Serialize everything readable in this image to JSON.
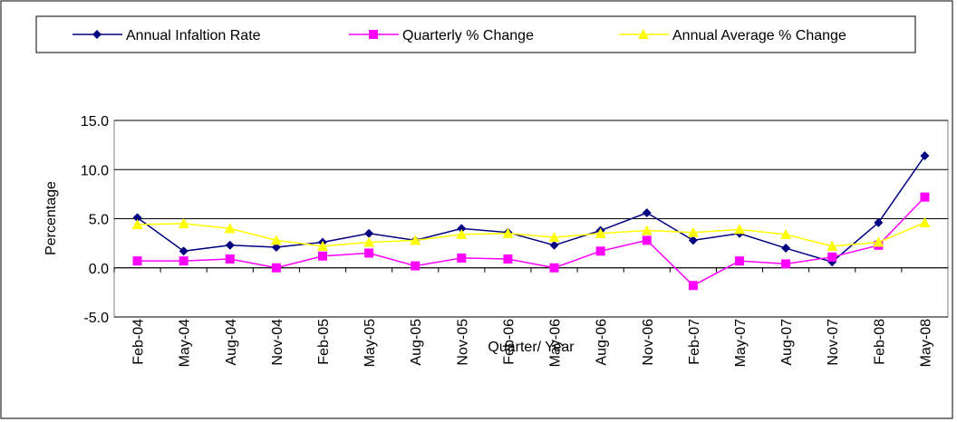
{
  "chart_data": {
    "type": "line",
    "x_label": "Quarter/ Year",
    "y_label": "Percentage",
    "categories": [
      "Feb-04",
      "May-04",
      "Aug-04",
      "Nov-04",
      "Feb-05",
      "May-05",
      "Aug-05",
      "Nov-05",
      "Feb-06",
      "May-06",
      "Aug-06",
      "Nov-06",
      "Feb-07",
      "May-07",
      "Aug-07",
      "Nov-07",
      "Feb-08",
      "May-08"
    ],
    "series": [
      {
        "name": "Annual Infaltion Rate",
        "color": "#000080",
        "marker": "diamond",
        "values": [
          5.1,
          1.7,
          2.3,
          2.1,
          2.6,
          3.5,
          2.8,
          4.0,
          3.6,
          2.3,
          3.8,
          5.6,
          2.8,
          3.5,
          2.0,
          0.6,
          4.6,
          11.4
        ]
      },
      {
        "name": "Quarterly % Change",
        "color": "#ff00ff",
        "marker": "square",
        "values": [
          0.7,
          0.7,
          0.9,
          0.0,
          1.2,
          1.5,
          0.2,
          1.0,
          0.9,
          0.0,
          1.7,
          2.8,
          -1.8,
          0.7,
          0.4,
          1.1,
          2.3,
          7.2
        ]
      },
      {
        "name": "Annual Average % Change",
        "color": "#ffff00",
        "marker": "triangle",
        "values": [
          4.4,
          4.5,
          4.0,
          2.8,
          2.2,
          2.6,
          2.8,
          3.4,
          3.5,
          3.1,
          3.5,
          3.8,
          3.6,
          3.9,
          3.4,
          2.2,
          2.6,
          4.6
        ]
      }
    ],
    "ylim": [
      -5,
      15
    ],
    "yticks": [
      {
        "value": -5,
        "label": "-5.0"
      },
      {
        "value": 0,
        "label": "0.0"
      },
      {
        "value": 5,
        "label": "5.0"
      },
      {
        "value": 10,
        "label": "10.0"
      },
      {
        "value": 15,
        "label": "15.0"
      }
    ],
    "grid": true,
    "legend": "top"
  }
}
